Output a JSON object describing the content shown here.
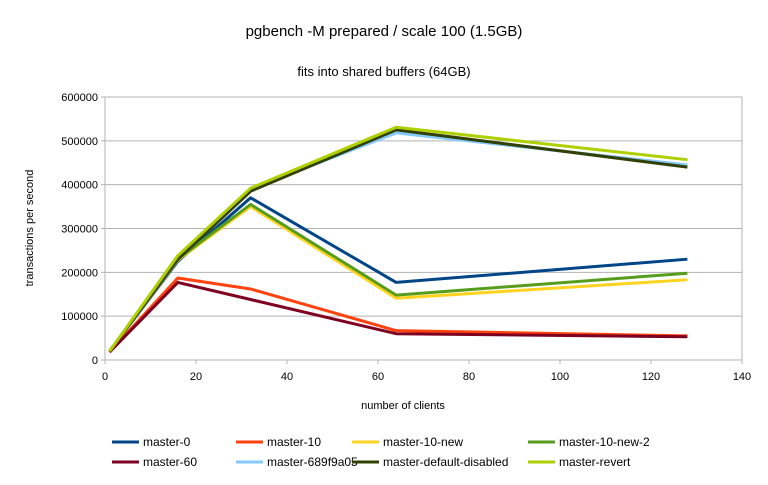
{
  "chart_data": {
    "type": "line",
    "title": "pgbench -M prepared / scale 100 (1.5GB)",
    "subtitle": "fits into shared buffers (64GB)",
    "xlabel": "number of clients",
    "ylabel": "transactions per second",
    "xlim": [
      0,
      140
    ],
    "ylim": [
      0,
      600000
    ],
    "xticks": [
      0,
      20,
      40,
      60,
      80,
      100,
      120,
      140
    ],
    "yticks": [
      0,
      100000,
      200000,
      300000,
      400000,
      500000,
      600000
    ],
    "grid": "horizontal",
    "legend_position": "bottom",
    "x": [
      1,
      16,
      32,
      64,
      128
    ],
    "series": [
      {
        "name": "master-0",
        "color": "#004586",
        "values": [
          20000,
          225000,
          370000,
          177000,
          230000
        ]
      },
      {
        "name": "master-10",
        "color": "#ff420e",
        "values": [
          18000,
          187000,
          162000,
          67000,
          55000
        ]
      },
      {
        "name": "master-10-new",
        "color": "#ffd320",
        "values": [
          20000,
          228000,
          350000,
          141000,
          183000
        ]
      },
      {
        "name": "master-10-new-2",
        "color": "#579d1c",
        "values": [
          20000,
          230000,
          355000,
          148000,
          198000
        ]
      },
      {
        "name": "master-60",
        "color": "#7e0021",
        "values": [
          18000,
          177000,
          138000,
          60000,
          53000
        ]
      },
      {
        "name": "master-689f9a05",
        "color": "#83caff",
        "values": [
          20000,
          235000,
          390000,
          518000,
          445000
        ]
      },
      {
        "name": "master-default-disabled",
        "color": "#314004",
        "values": [
          20000,
          230000,
          385000,
          525000,
          440000
        ]
      },
      {
        "name": "master-revert",
        "color": "#aecf00",
        "values": [
          20000,
          238000,
          392000,
          531000,
          457000
        ]
      }
    ]
  }
}
